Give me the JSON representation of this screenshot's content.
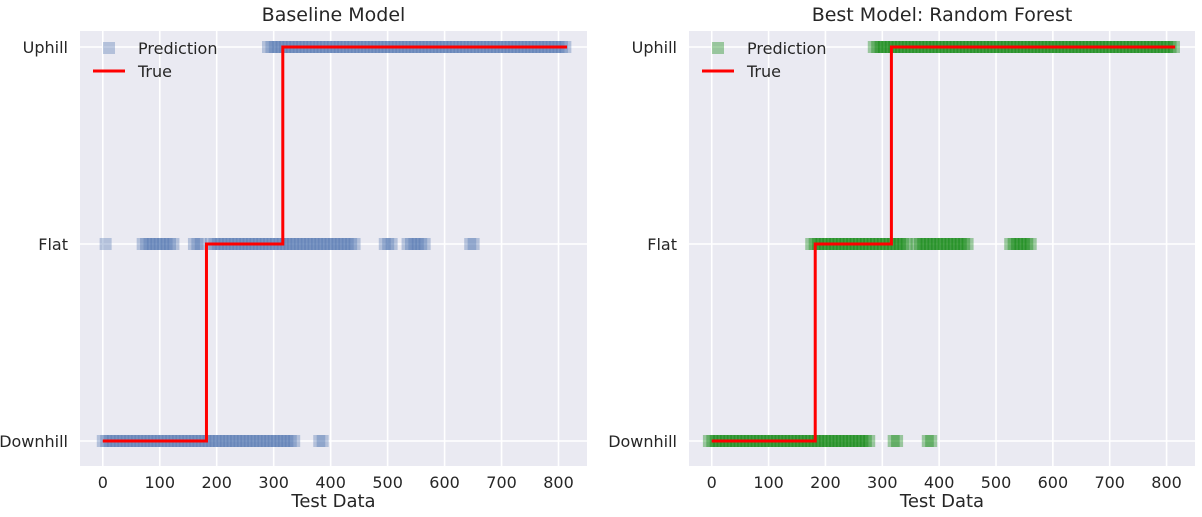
{
  "chart_data": [
    {
      "type": "scatter",
      "title": "Baseline Model",
      "xlabel": "Test Data",
      "ylabel": "",
      "xlim": [
        -40,
        850
      ],
      "xticks": [
        0,
        100,
        200,
        300,
        400,
        500,
        600,
        700,
        800
      ],
      "categories": [
        "Downhill",
        "Flat",
        "Uphill"
      ],
      "grid": true,
      "legend_position": "top-left",
      "prediction_color": "#4c72b0",
      "true_color": "#ff0000",
      "series": [
        {
          "name": "Prediction",
          "kind": "markers",
          "segments": [
            {
              "category": "Uphill",
              "x_start": 290,
              "x_end": 815
            },
            {
              "category": "Flat",
              "x_start": 5,
              "x_end": 10
            },
            {
              "category": "Flat",
              "x_start": 70,
              "x_end": 125
            },
            {
              "category": "Flat",
              "x_start": 160,
              "x_end": 175
            },
            {
              "category": "Flat",
              "x_start": 190,
              "x_end": 445
            },
            {
              "category": "Flat",
              "x_start": 495,
              "x_end": 510
            },
            {
              "category": "Flat",
              "x_start": 535,
              "x_end": 570
            },
            {
              "category": "Flat",
              "x_start": 645,
              "x_end": 655
            },
            {
              "category": "Downhill",
              "x_start": 0,
              "x_end": 340
            },
            {
              "category": "Downhill",
              "x_start": 380,
              "x_end": 390
            }
          ]
        },
        {
          "name": "True",
          "kind": "step",
          "points": [
            {
              "x": 0,
              "category": "Downhill"
            },
            {
              "x": 182,
              "category": "Downhill"
            },
            {
              "x": 182,
              "category": "Flat"
            },
            {
              "x": 316,
              "category": "Flat"
            },
            {
              "x": 316,
              "category": "Uphill"
            },
            {
              "x": 815,
              "category": "Uphill"
            }
          ]
        }
      ]
    },
    {
      "type": "scatter",
      "title": "Best Model: Random Forest",
      "xlabel": "Test Data",
      "ylabel": "",
      "xlim": [
        -40,
        850
      ],
      "xticks": [
        0,
        100,
        200,
        300,
        400,
        500,
        600,
        700,
        800
      ],
      "categories": [
        "Downhill",
        "Flat",
        "Uphill"
      ],
      "grid": true,
      "legend_position": "top-left",
      "prediction_color": "#008000",
      "true_color": "#ff0000",
      "series": [
        {
          "name": "Prediction",
          "kind": "markers",
          "segments": [
            {
              "category": "Uphill",
              "x_start": 285,
              "x_end": 815
            },
            {
              "category": "Flat",
              "x_start": 175,
              "x_end": 345
            },
            {
              "category": "Flat",
              "x_start": 360,
              "x_end": 450
            },
            {
              "category": "Flat",
              "x_start": 525,
              "x_end": 565
            },
            {
              "category": "Downhill",
              "x_start": -5,
              "x_end": 280
            },
            {
              "category": "Downhill",
              "x_start": 320,
              "x_end": 330
            },
            {
              "category": "Downhill",
              "x_start": 380,
              "x_end": 390
            }
          ]
        },
        {
          "name": "True",
          "kind": "step",
          "points": [
            {
              "x": 0,
              "category": "Downhill"
            },
            {
              "x": 182,
              "category": "Downhill"
            },
            {
              "x": 182,
              "category": "Flat"
            },
            {
              "x": 316,
              "category": "Flat"
            },
            {
              "x": 316,
              "category": "Uphill"
            },
            {
              "x": 815,
              "category": "Uphill"
            }
          ]
        }
      ]
    }
  ]
}
